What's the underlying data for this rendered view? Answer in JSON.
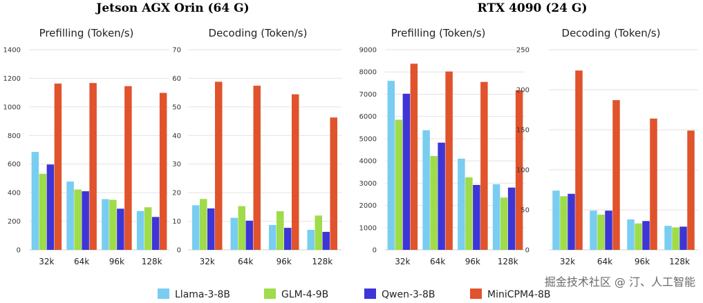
{
  "groups": [
    {
      "title": "Jetson AGX Orin (64 G)"
    },
    {
      "title": "RTX 4090 (24 G)"
    }
  ],
  "legend": [
    {
      "name": "Llama-3-8B",
      "color": "#79cdf0"
    },
    {
      "name": "GLM-4-9B",
      "color": "#9fdc4a"
    },
    {
      "name": "Qwen-3-8B",
      "color": "#3d35d6"
    },
    {
      "name": "MiniCPM4-8B",
      "color": "#e0532c"
    }
  ],
  "watermark": "掘金技术社区 @ 汀、人工智能",
  "chart_data": [
    {
      "type": "bar",
      "group": "Jetson AGX Orin (64 G)",
      "title": "Prefilling (Token/s)",
      "categories": [
        "32k",
        "64k",
        "96k",
        "128k"
      ],
      "ylim": [
        0,
        1400
      ],
      "yticks": [
        0,
        200,
        400,
        600,
        800,
        1000,
        1200,
        1400
      ],
      "grid": true,
      "series": [
        {
          "name": "Llama-3-8B",
          "values": [
            685,
            478,
            355,
            272
          ]
        },
        {
          "name": "GLM-4-9B",
          "values": [
            532,
            422,
            350,
            298
          ]
        },
        {
          "name": "Qwen-3-8B",
          "values": [
            597,
            410,
            288,
            230
          ]
        },
        {
          "name": "MiniCPM4-8B",
          "values": [
            1163,
            1167,
            1145,
            1098
          ]
        }
      ]
    },
    {
      "type": "bar",
      "group": "Jetson AGX Orin (64 G)",
      "title": "Decoding (Token/s)",
      "categories": [
        "32k",
        "64k",
        "96k",
        "128k"
      ],
      "ylim": [
        0,
        70
      ],
      "yticks": [
        0,
        10,
        20,
        30,
        40,
        50,
        60,
        70
      ],
      "grid": true,
      "series": [
        {
          "name": "Llama-3-8B",
          "values": [
            15.6,
            11.2,
            8.7,
            7.0
          ]
        },
        {
          "name": "GLM-4-9B",
          "values": [
            17.8,
            15.3,
            13.5,
            12.0
          ]
        },
        {
          "name": "Qwen-3-8B",
          "values": [
            14.5,
            10.2,
            7.7,
            6.3
          ]
        },
        {
          "name": "MiniCPM4-8B",
          "values": [
            58.8,
            57.4,
            54.4,
            46.3
          ]
        }
      ]
    },
    {
      "type": "bar",
      "group": "RTX 4090 (24 G)",
      "title": "Prefilling (Token/s)",
      "categories": [
        "32k",
        "64k",
        "96k",
        "128k"
      ],
      "ylim": [
        0,
        9000
      ],
      "yticks": [
        0,
        1000,
        2000,
        3000,
        4000,
        5000,
        6000,
        7000,
        8000,
        9000
      ],
      "grid": true,
      "series": [
        {
          "name": "Llama-3-8B",
          "values": [
            7600,
            5380,
            4100,
            2950
          ]
        },
        {
          "name": "GLM-4-9B",
          "values": [
            5850,
            4220,
            3260,
            2350
          ]
        },
        {
          "name": "Qwen-3-8B",
          "values": [
            7020,
            4820,
            2920,
            2800
          ]
        },
        {
          "name": "MiniCPM4-8B",
          "values": [
            8370,
            8020,
            7550,
            7180
          ]
        }
      ]
    },
    {
      "type": "bar",
      "group": "RTX 4090 (24 G)",
      "title": "Decoding (Token/s)",
      "categories": [
        "32k",
        "64k",
        "96k",
        "128k"
      ],
      "ylim": [
        0,
        250
      ],
      "yticks": [
        0,
        50,
        100,
        150,
        200,
        250
      ],
      "grid": true,
      "series": [
        {
          "name": "Llama-3-8B",
          "values": [
            74,
            49,
            38,
            30
          ]
        },
        {
          "name": "GLM-4-9B",
          "values": [
            67,
            44,
            33,
            28
          ]
        },
        {
          "name": "Qwen-3-8B",
          "values": [
            70,
            49,
            36,
            29
          ]
        },
        {
          "name": "MiniCPM4-8B",
          "values": [
            224,
            187,
            164,
            149
          ]
        }
      ]
    }
  ]
}
